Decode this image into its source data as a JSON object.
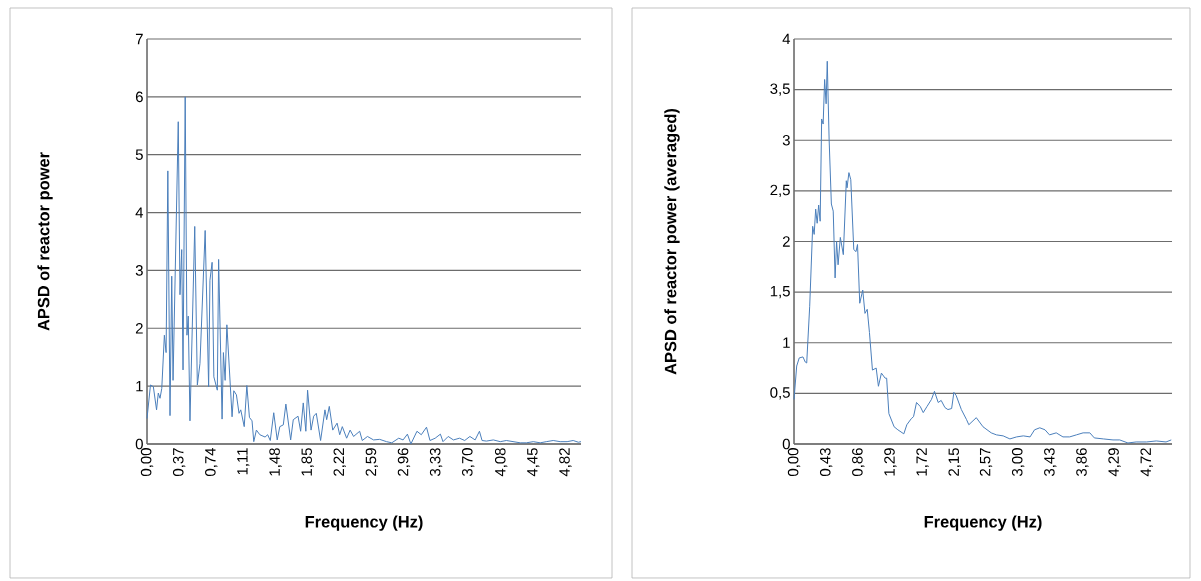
{
  "chart_data": [
    {
      "type": "line",
      "xlabel": "Frequency (Hz)",
      "ylabel": "APSD of reactor power",
      "xlim": [
        0,
        5.0
      ],
      "ylim": [
        0,
        7
      ],
      "xticks": [
        {
          "value": 0,
          "label": "0,00"
        },
        {
          "value": 0.37,
          "label": "0,37"
        },
        {
          "value": 0.74,
          "label": "0,74"
        },
        {
          "value": 1.11,
          "label": "1,11"
        },
        {
          "value": 1.48,
          "label": "1,48"
        },
        {
          "value": 1.85,
          "label": "1,85"
        },
        {
          "value": 2.22,
          "label": "2,22"
        },
        {
          "value": 2.59,
          "label": "2,59"
        },
        {
          "value": 2.96,
          "label": "2,96"
        },
        {
          "value": 3.33,
          "label": "3,33"
        },
        {
          "value": 3.7,
          "label": "3,70"
        },
        {
          "value": 4.08,
          "label": "4,08"
        },
        {
          "value": 4.45,
          "label": "4,45"
        },
        {
          "value": 4.82,
          "label": "4,82"
        }
      ],
      "yticks": [
        0,
        1,
        2,
        3,
        4,
        5,
        6,
        7
      ],
      "grid": "y",
      "marker": "none",
      "line_style": "solid",
      "series": [
        {
          "color": "#4a7ebb",
          "x": [
            0,
            0.04,
            0.073,
            0.11,
            0.13,
            0.15,
            0.17,
            0.2,
            0.22,
            0.24,
            0.265,
            0.285,
            0.3,
            0.36,
            0.38,
            0.4,
            0.415,
            0.44,
            0.46,
            0.475,
            0.495,
            0.55,
            0.58,
            0.61,
            0.67,
            0.71,
            0.725,
            0.75,
            0.77,
            0.81,
            0.825,
            0.865,
            0.88,
            0.9,
            0.92,
            0.98,
            1.0,
            1.03,
            1.06,
            1.08,
            1.12,
            1.15,
            1.18,
            1.21,
            1.23,
            1.26,
            1.3,
            1.36,
            1.39,
            1.42,
            1.46,
            1.5,
            1.53,
            1.57,
            1.6,
            1.655,
            1.685,
            1.74,
            1.77,
            1.8,
            1.83,
            1.85,
            1.89,
            1.92,
            1.95,
            2.0,
            2.05,
            2.07,
            2.1,
            2.14,
            2.19,
            2.22,
            2.25,
            2.3,
            2.34,
            2.38,
            2.45,
            2.48,
            2.54,
            2.61,
            2.68,
            2.76,
            2.82,
            2.9,
            2.95,
            3.0,
            3.04,
            3.11,
            3.16,
            3.22,
            3.26,
            3.32,
            3.38,
            3.41,
            3.47,
            3.53,
            3.6,
            3.66,
            3.72,
            3.78,
            3.83,
            3.86,
            3.91,
            3.99,
            4.07,
            4.14,
            4.22,
            4.3,
            4.37,
            4.45,
            4.53,
            4.6,
            4.68,
            4.76,
            4.84,
            4.91,
            4.97,
            5.0
          ],
          "values": [
            0.44,
            1.02,
            0.99,
            0.59,
            0.88,
            0.79,
            0.96,
            1.88,
            1.58,
            4.72,
            0.49,
            2.9,
            1.1,
            5.57,
            2.58,
            3.36,
            1.28,
            6.0,
            1.88,
            2.21,
            0.4,
            3.76,
            1.02,
            1.39,
            3.69,
            0.99,
            2.83,
            3.14,
            1.16,
            0.93,
            3.19,
            0.43,
            1.58,
            1.1,
            2.06,
            0.47,
            0.92,
            0.85,
            0.53,
            0.59,
            0.3,
            1.01,
            0.46,
            0.4,
            0.04,
            0.24,
            0.16,
            0.12,
            0.16,
            0.06,
            0.54,
            0.07,
            0.3,
            0.33,
            0.69,
            0.07,
            0.42,
            0.48,
            0.22,
            0.71,
            0.22,
            0.93,
            0.24,
            0.48,
            0.53,
            0.06,
            0.59,
            0.42,
            0.65,
            0.24,
            0.36,
            0.16,
            0.3,
            0.1,
            0.24,
            0.13,
            0.22,
            0.06,
            0.13,
            0.07,
            0.08,
            0.04,
            0.02,
            0.1,
            0.07,
            0.17,
            0.0,
            0.22,
            0.16,
            0.29,
            0.06,
            0.1,
            0.17,
            0.04,
            0.13,
            0.07,
            0.1,
            0.06,
            0.13,
            0.07,
            0.22,
            0.06,
            0.05,
            0.07,
            0.04,
            0.06,
            0.04,
            0.02,
            0.02,
            0.04,
            0.02,
            0.04,
            0.06,
            0.04,
            0.04,
            0.06,
            0.03,
            0.04
          ]
        }
      ]
    },
    {
      "type": "line",
      "xlabel": "Frequency (Hz)",
      "ylabel": "APSD of reactor power (averaged)",
      "xlim": [
        0,
        5.06
      ],
      "ylim": [
        0,
        4
      ],
      "xticks": [
        {
          "value": 0,
          "label": "0,00"
        },
        {
          "value": 0.43,
          "label": "0,43"
        },
        {
          "value": 0.86,
          "label": "0,86"
        },
        {
          "value": 1.29,
          "label": "1,29"
        },
        {
          "value": 1.72,
          "label": "1,72"
        },
        {
          "value": 2.15,
          "label": "2,15"
        },
        {
          "value": 2.57,
          "label": "2,57"
        },
        {
          "value": 3.0,
          "label": "3,00"
        },
        {
          "value": 3.43,
          "label": "3,43"
        },
        {
          "value": 3.86,
          "label": "3,86"
        },
        {
          "value": 4.29,
          "label": "4,29"
        },
        {
          "value": 4.72,
          "label": "4,72"
        }
      ],
      "yticks": [
        0,
        {
          "value": 0.5,
          "label": "0,5"
        },
        1,
        {
          "value": 1.5,
          "label": "1,5"
        },
        2,
        {
          "value": 2.5,
          "label": "2,5"
        },
        3,
        {
          "value": 3.5,
          "label": "3,5"
        },
        4
      ],
      "grid": "y",
      "marker": "none",
      "line_style": "solid",
      "series": [
        {
          "color": "#4a7ebb",
          "x": [
            0,
            0.036,
            0.07,
            0.12,
            0.15,
            0.17,
            0.21,
            0.25,
            0.27,
            0.29,
            0.31,
            0.33,
            0.35,
            0.37,
            0.39,
            0.41,
            0.43,
            0.445,
            0.47,
            0.5,
            0.525,
            0.55,
            0.57,
            0.59,
            0.62,
            0.66,
            0.7,
            0.71,
            0.735,
            0.76,
            0.8,
            0.83,
            0.85,
            0.88,
            0.92,
            0.95,
            0.98,
            1.01,
            1.05,
            1.1,
            1.13,
            1.17,
            1.22,
            1.24,
            1.27,
            1.34,
            1.39,
            1.47,
            1.51,
            1.57,
            1.6,
            1.64,
            1.69,
            1.73,
            1.78,
            1.84,
            1.88,
            1.93,
            1.97,
            2.02,
            2.06,
            2.11,
            2.14,
            2.17,
            2.24,
            2.31,
            2.34,
            2.44,
            2.53,
            2.64,
            2.71,
            2.8,
            2.89,
            2.98,
            3.07,
            3.16,
            3.22,
            3.29,
            3.36,
            3.42,
            3.51,
            3.6,
            3.69,
            3.78,
            3.87,
            3.96,
            4.02,
            4.14,
            4.27,
            4.36,
            4.47,
            4.58,
            4.72,
            4.85,
            4.98,
            5.05
          ],
          "values": [
            0.44,
            0.77,
            0.85,
            0.86,
            0.81,
            0.8,
            1.36,
            2.15,
            2.07,
            2.32,
            2.18,
            2.36,
            2.2,
            3.21,
            3.16,
            3.6,
            3.36,
            3.78,
            3.01,
            2.37,
            2.3,
            1.64,
            2.0,
            1.77,
            2.04,
            1.87,
            2.6,
            2.53,
            2.68,
            2.61,
            1.92,
            1.9,
            1.97,
            1.39,
            1.52,
            1.29,
            1.33,
            1.1,
            0.73,
            0.75,
            0.57,
            0.7,
            0.65,
            0.65,
            0.3,
            0.17,
            0.14,
            0.1,
            0.19,
            0.25,
            0.27,
            0.41,
            0.37,
            0.31,
            0.37,
            0.44,
            0.52,
            0.41,
            0.43,
            0.36,
            0.34,
            0.35,
            0.51,
            0.48,
            0.34,
            0.24,
            0.19,
            0.26,
            0.17,
            0.11,
            0.09,
            0.08,
            0.05,
            0.07,
            0.08,
            0.07,
            0.14,
            0.16,
            0.14,
            0.09,
            0.11,
            0.07,
            0.07,
            0.09,
            0.11,
            0.11,
            0.06,
            0.05,
            0.04,
            0.04,
            0.01,
            0.02,
            0.02,
            0.03,
            0.02,
            0.04
          ]
        }
      ]
    }
  ]
}
